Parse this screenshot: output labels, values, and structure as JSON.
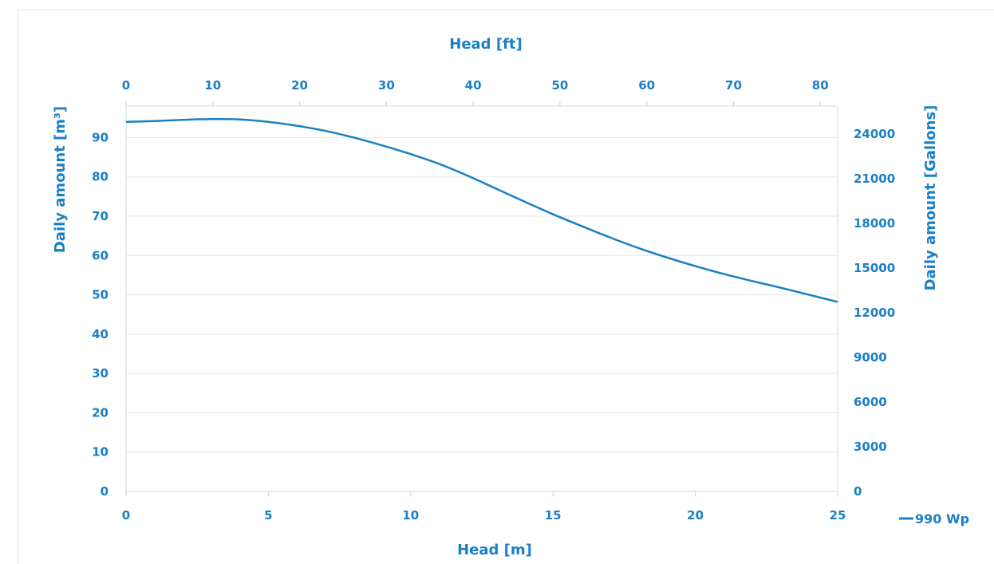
{
  "chart_data": {
    "type": "line",
    "x_label": "Head [m]",
    "x2_label": "Head [ft]",
    "y_label": "Daily amount [m³]",
    "y2_label": "Daily amount [Gallons]",
    "xlim": [
      0,
      25
    ],
    "x2lim": [
      0,
      82
    ],
    "ylim": [
      0,
      98
    ],
    "y2lim": [
      0,
      25888
    ],
    "x_ticks": [
      "0",
      "5",
      "10",
      "15",
      "20",
      "25"
    ],
    "x2_ticks": [
      "0",
      "10",
      "20",
      "30",
      "40",
      "50",
      "60",
      "70",
      "80"
    ],
    "y_ticks": [
      "0",
      "10",
      "20",
      "30",
      "40",
      "50",
      "60",
      "70",
      "80",
      "90"
    ],
    "y2_ticks": [
      "0",
      "3000",
      "6000",
      "9000",
      "12000",
      "15000",
      "18000",
      "21000",
      "24000"
    ],
    "grid": true,
    "legend_position": "bottom-right",
    "series": [
      {
        "name": "990 Wp",
        "color": "#1a7fc4",
        "x": [
          0,
          1,
          2,
          3,
          4,
          5,
          6,
          7,
          8,
          9,
          10,
          11,
          12,
          13,
          14,
          15,
          16,
          17,
          18,
          19,
          20,
          21,
          22,
          23,
          24,
          25
        ],
        "y": [
          94.0,
          94.2,
          94.5,
          94.7,
          94.6,
          94.0,
          93.0,
          91.7,
          90.0,
          88.0,
          85.8,
          83.3,
          80.3,
          77.0,
          73.7,
          70.5,
          67.5,
          64.6,
          61.9,
          59.5,
          57.3,
          55.3,
          53.5,
          51.8,
          50.0,
          48.2
        ]
      }
    ]
  }
}
